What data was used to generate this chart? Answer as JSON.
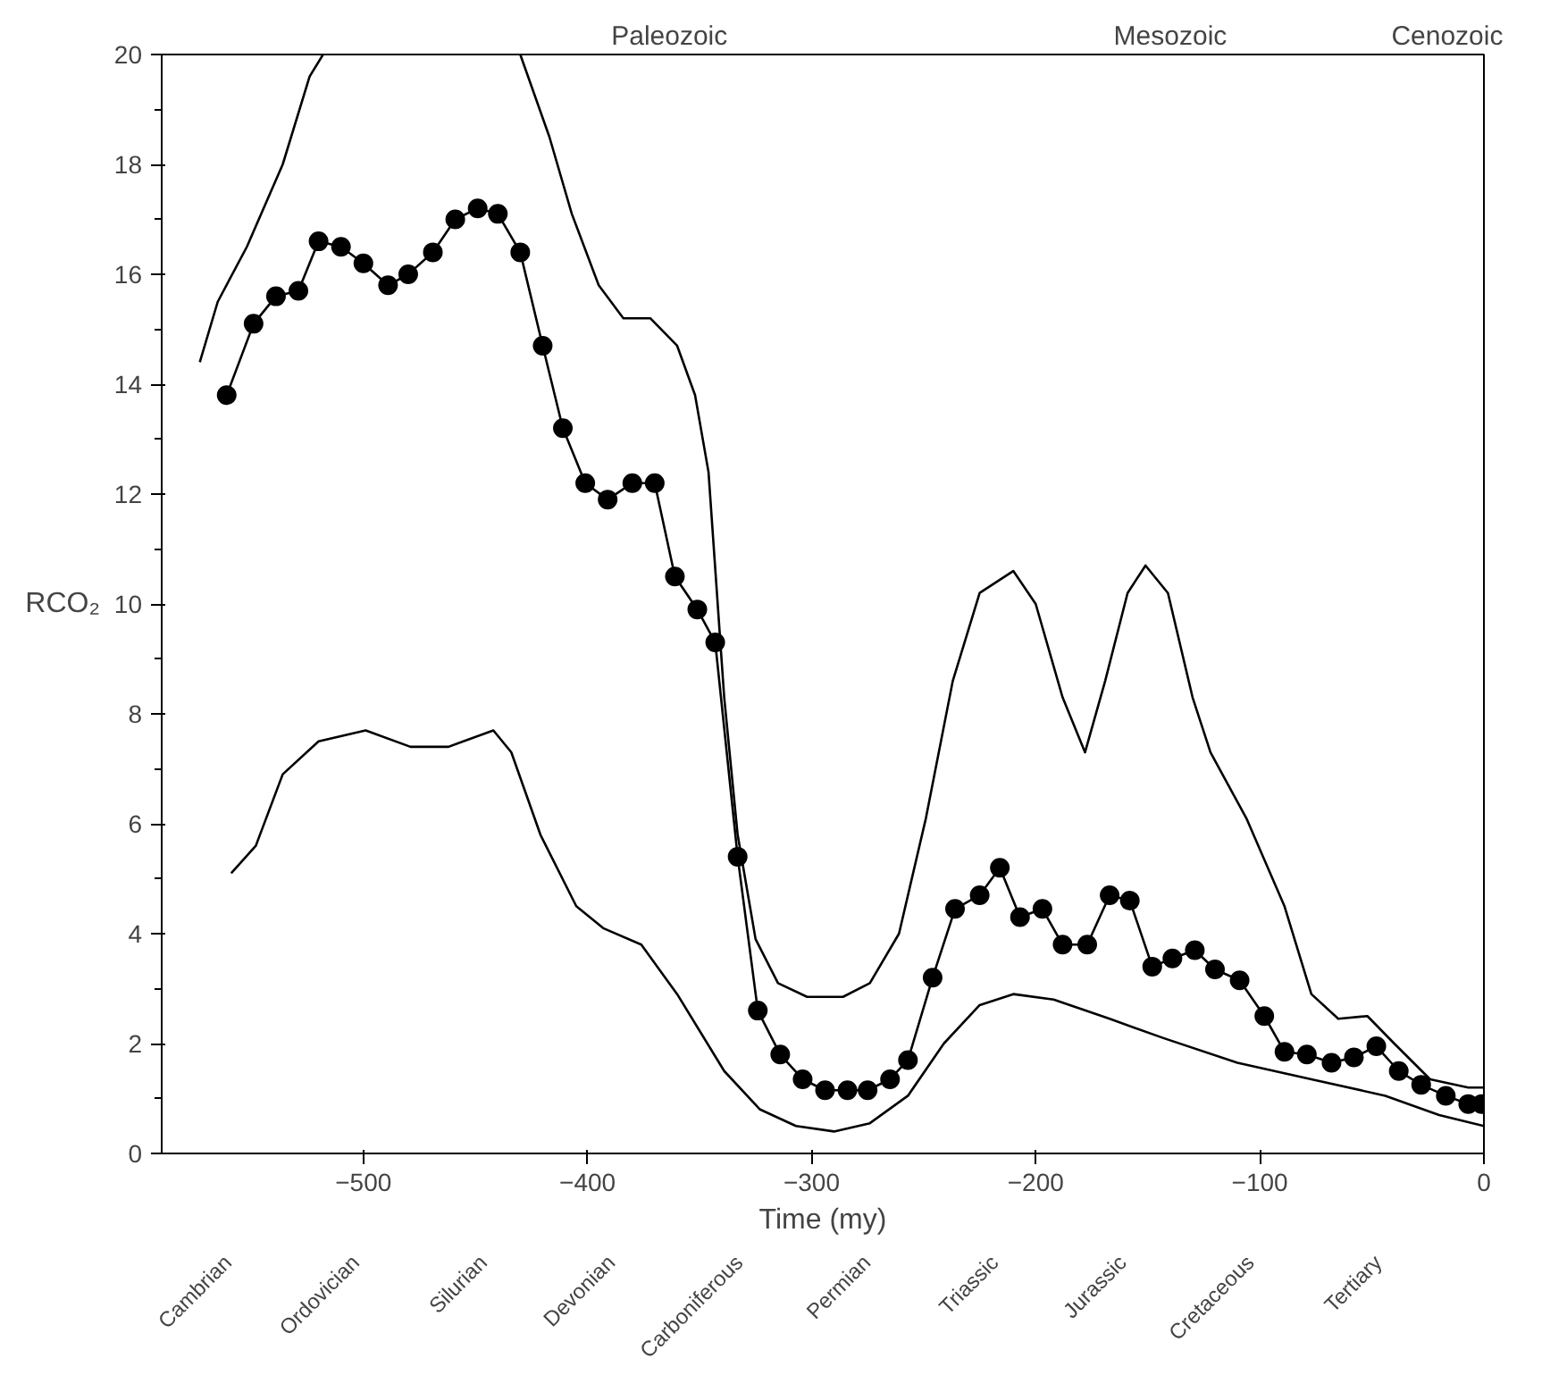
{
  "chart_data": {
    "type": "line",
    "xlabel": "Time (my)",
    "ylabel": "RCO₂",
    "xlim": [
      -590,
      0
    ],
    "xticks": [
      -500,
      -400,
      -300,
      -200,
      -100,
      0
    ],
    "ylim": [
      0,
      20
    ],
    "yticks": [
      0,
      2,
      4,
      6,
      8,
      10,
      12,
      14,
      16,
      18,
      20
    ],
    "annotations": [
      "Paleozoic",
      "Mesozoic",
      "Cenozoic",
      "Cambrian",
      "Ordovician",
      "Silurian",
      "Devonian",
      "Carboniferous",
      "Permian",
      "Triassic",
      "Jurassic",
      "Cretaceous",
      "Tertiary"
    ],
    "series": [
      {
        "color": "#000000",
        "marker": "circle",
        "x": [
          -561,
          -549,
          -539,
          -529,
          -520,
          -510,
          -500,
          -489,
          -480,
          -469,
          -459,
          -449,
          -440,
          -430,
          -420,
          -411,
          -401,
          -391,
          -380,
          -370,
          -361,
          -351,
          -343,
          -333,
          -324,
          -314,
          -304,
          -294,
          -284,
          -275,
          -265,
          -257,
          -246,
          -236,
          -225,
          -216,
          -207,
          -197,
          -188,
          -177,
          -167,
          -158,
          -148,
          -139,
          -129,
          -120,
          -109,
          -98,
          -89,
          -79,
          -68,
          -58,
          -48,
          -38,
          -28,
          -17,
          -7,
          -1
        ],
        "values": [
          13.8,
          15.1,
          15.6,
          15.7,
          16.6,
          16.5,
          16.2,
          15.8,
          16.0,
          16.4,
          17.0,
          17.2,
          17.1,
          16.4,
          14.7,
          13.2,
          12.2,
          11.9,
          12.2,
          12.2,
          10.5,
          9.9,
          9.3,
          5.4,
          2.6,
          1.8,
          1.35,
          1.15,
          1.15,
          1.15,
          1.35,
          1.7,
          3.2,
          4.45,
          4.7,
          5.2,
          4.3,
          4.45,
          3.8,
          3.8,
          4.7,
          4.6,
          3.4,
          3.55,
          3.7,
          3.35,
          3.15,
          2.5,
          1.85,
          1.8,
          1.65,
          1.75,
          1.95,
          1.5,
          1.25,
          1.05,
          0.9,
          0.9
        ]
      },
      {
        "color": "#000000",
        "marker": "none",
        "x": [
          -573,
          -565,
          -552,
          -536,
          -524,
          -518,
          -474,
          -430,
          -417,
          -407,
          -395,
          -384,
          -372,
          -360,
          -352,
          -346,
          -339,
          -333,
          -325,
          -315,
          -302,
          -286,
          -274,
          -261,
          -249,
          -237,
          -225,
          -210,
          -200,
          -188,
          -178,
          -169,
          -159,
          -151,
          -141,
          -130,
          -122,
          -106,
          -89,
          -77,
          -65,
          -52,
          -40,
          -24,
          -7,
          0
        ],
        "values": [
          14.4,
          15.5,
          16.5,
          18,
          19.6,
          20,
          null,
          20,
          18.5,
          17.1,
          15.8,
          15.2,
          15.2,
          14.7,
          13.8,
          12.4,
          8.3,
          5.8,
          3.9,
          3.1,
          2.85,
          2.85,
          3.1,
          4.0,
          6.1,
          8.6,
          10.2,
          10.6,
          10.0,
          8.3,
          7.3,
          8.6,
          10.2,
          10.7,
          10.2,
          8.3,
          7.3,
          6.1,
          4.5,
          2.9,
          2.45,
          2.5,
          2.0,
          1.35,
          1.2,
          1.2
        ]
      },
      {
        "color": "#000000",
        "marker": "none",
        "x": [
          -559,
          -548,
          -536,
          -520,
          -499,
          -479,
          -462,
          -442,
          -434,
          -421,
          -405,
          -393,
          -376,
          -360,
          -339,
          -323,
          -307,
          -290,
          -274,
          -257,
          -241,
          -225,
          -210,
          -192,
          -167,
          -143,
          -110,
          -77,
          -44,
          -20,
          0
        ],
        "values": [
          5.1,
          5.6,
          6.9,
          7.5,
          7.7,
          7.4,
          7.4,
          7.7,
          7.3,
          5.8,
          4.5,
          4.1,
          3.8,
          2.9,
          1.5,
          0.8,
          0.5,
          0.4,
          0.55,
          1.05,
          2.0,
          2.7,
          2.9,
          2.8,
          2.45,
          2.1,
          1.65,
          1.35,
          1.05,
          0.7,
          0.5
        ]
      }
    ]
  }
}
